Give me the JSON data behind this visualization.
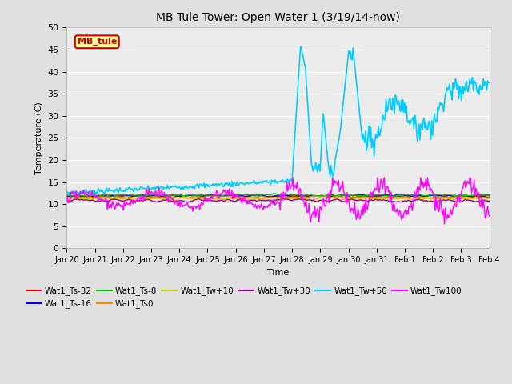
{
  "title": "MB Tule Tower: Open Water 1 (3/19/14-now)",
  "xlabel": "Time",
  "ylabel": "Temperature (C)",
  "ylim": [
    0,
    50
  ],
  "yticks": [
    0,
    5,
    10,
    15,
    20,
    25,
    30,
    35,
    40,
    45,
    50
  ],
  "x_labels": [
    "Jan 20",
    "Jan 21",
    "Jan 22",
    "Jan 23",
    "Jan 24",
    "Jan 25",
    "Jan 26",
    "Jan 27",
    "Jan 28",
    "Jan 29",
    "Jan 30",
    "Jan 31",
    "Feb 1",
    "Feb 2",
    "Feb 3",
    "Feb 4"
  ],
  "fig_bg": "#e0e0e0",
  "plot_bg": "#ebebeb",
  "grid_color": "#ffffff",
  "series": [
    {
      "label": "Wat1_Ts-32",
      "color": "#dd0000",
      "lw": 1.0
    },
    {
      "label": "Wat1_Ts-16",
      "color": "#0000dd",
      "lw": 1.0
    },
    {
      "label": "Wat1_Ts-8",
      "color": "#00bb00",
      "lw": 1.0
    },
    {
      "label": "Wat1_Ts0",
      "color": "#ff8800",
      "lw": 1.0
    },
    {
      "label": "Wat1_Tw+10",
      "color": "#cccc00",
      "lw": 1.0
    },
    {
      "label": "Wat1_Tw+30",
      "color": "#990099",
      "lw": 1.0
    },
    {
      "label": "Wat1_Tw+50",
      "color": "#00ccff",
      "lw": 1.2
    },
    {
      "label": "Wat1_Tw100",
      "color": "#ff00ff",
      "lw": 1.0
    }
  ],
  "legend_ncol_row1": 6,
  "mb_tule_box_fc": "#ffff99",
  "mb_tule_box_ec": "#cc0000",
  "mb_tule_text_color": "#cc0000"
}
